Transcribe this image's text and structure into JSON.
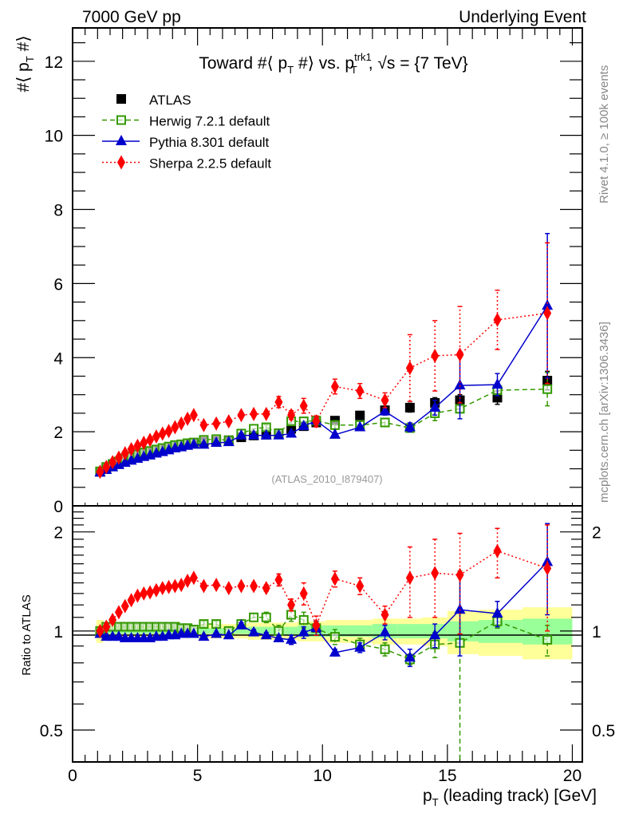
{
  "header": {
    "left_label": "7000 GeV pp",
    "right_label": "Underlying Event",
    "side_label_top": "Rivet 4.1.0, ≥ 100k events",
    "side_label_bottom": "mcplots.cern.ch [arXiv:1306.3436]",
    "watermark": "(ATLAS_2010_I879407)"
  },
  "chart_data": [
    {
      "type": "scatter",
      "panel": "main",
      "title": "Toward #⟨ p_T #⟩ vs. p_T^trk1, √s = {7 TeV}",
      "title_parts": {
        "a": "Toward #⟨ p",
        "a_sub": "T",
        "b": " #⟩ vs. p",
        "b_sup": "trk1",
        "b_sub": "T",
        "c": ", √s = {7 TeV}"
      },
      "xlabel": "p_T (leading track) [GeV]",
      "xlabel_parts": {
        "a": "p",
        "sub": "T",
        "b": " (leading track) [GeV]"
      },
      "ylabel": "#⟨ p_T #⟩",
      "ylabel_parts": {
        "a": "#⟨ p",
        "sub": "T",
        "b": " #⟩"
      },
      "xlim": [
        0,
        20.4
      ],
      "ylim": [
        0,
        12.9
      ],
      "xticks": [
        0,
        5,
        10,
        15,
        20
      ],
      "yticks": [
        0,
        2,
        4,
        6,
        8,
        10,
        12
      ],
      "legend_position": "top-left",
      "x": [
        1.1,
        1.35,
        1.6,
        1.85,
        2.1,
        2.35,
        2.6,
        2.85,
        3.1,
        3.35,
        3.6,
        3.85,
        4.1,
        4.35,
        4.6,
        4.85,
        5.25,
        5.75,
        6.25,
        6.75,
        7.25,
        7.75,
        8.25,
        8.75,
        9.25,
        9.75,
        10.5,
        11.5,
        12.5,
        13.5,
        14.5,
        15.5,
        17.0,
        19.0
      ],
      "series": [
        {
          "name": "ATLAS",
          "color": "#000000",
          "marker": "square-filled",
          "line": "none",
          "values": [
            0.92,
            1.02,
            1.1,
            1.17,
            1.24,
            1.3,
            1.35,
            1.4,
            1.44,
            1.48,
            1.52,
            1.56,
            1.6,
            1.63,
            1.66,
            1.69,
            1.73,
            1.75,
            1.77,
            1.85,
            1.9,
            1.92,
            1.96,
            2.08,
            2.15,
            2.25,
            2.3,
            2.44,
            2.58,
            2.65,
            2.78,
            2.85,
            2.92,
            3.38
          ],
          "errors": [
            0.02,
            0.02,
            0.02,
            0.02,
            0.02,
            0.02,
            0.02,
            0.02,
            0.02,
            0.02,
            0.02,
            0.02,
            0.02,
            0.02,
            0.02,
            0.02,
            0.03,
            0.03,
            0.03,
            0.03,
            0.04,
            0.04,
            0.05,
            0.05,
            0.06,
            0.06,
            0.08,
            0.09,
            0.1,
            0.12,
            0.14,
            0.15,
            0.18,
            0.25
          ]
        },
        {
          "name": "Herwig 7.2.1 default",
          "color": "#339900",
          "marker": "square-open",
          "line": "dashed",
          "values": [
            0.93,
            1.05,
            1.13,
            1.2,
            1.28,
            1.34,
            1.39,
            1.44,
            1.48,
            1.52,
            1.56,
            1.6,
            1.64,
            1.66,
            1.69,
            1.71,
            1.78,
            1.8,
            1.77,
            1.95,
            2.08,
            2.12,
            1.96,
            2.28,
            2.28,
            2.3,
            2.18,
            2.18,
            2.25,
            2.1,
            2.5,
            2.62,
            3.12,
            3.15
          ],
          "errors": [
            0.02,
            0.02,
            0.02,
            0.02,
            0.02,
            0.02,
            0.02,
            0.02,
            0.02,
            0.02,
            0.02,
            0.02,
            0.02,
            0.02,
            0.02,
            0.02,
            0.03,
            0.04,
            0.04,
            0.05,
            0.06,
            0.07,
            0.08,
            0.1,
            0.1,
            0.12,
            0.12,
            0.1,
            0.1,
            0.1,
            0.2,
            0.1,
            0.1,
            0.45
          ]
        },
        {
          "name": "Pythia 8.301 default",
          "color": "#0000cc",
          "marker": "triangle-filled",
          "line": "solid",
          "values": [
            0.9,
            0.97,
            1.04,
            1.1,
            1.16,
            1.22,
            1.27,
            1.32,
            1.36,
            1.41,
            1.45,
            1.5,
            1.55,
            1.58,
            1.62,
            1.65,
            1.65,
            1.7,
            1.72,
            1.9,
            1.9,
            1.9,
            1.9,
            1.95,
            2.15,
            2.3,
            1.92,
            2.12,
            2.55,
            2.12,
            2.65,
            3.25,
            3.27,
            5.4
          ],
          "errors": [
            0.01,
            0.01,
            0.01,
            0.01,
            0.01,
            0.01,
            0.01,
            0.01,
            0.01,
            0.01,
            0.01,
            0.01,
            0.01,
            0.01,
            0.01,
            0.01,
            0.02,
            0.02,
            0.02,
            0.03,
            0.04,
            0.04,
            0.05,
            0.06,
            0.08,
            0.08,
            0.05,
            0.06,
            0.1,
            0.12,
            0.2,
            0.9,
            0.3,
            1.95
          ]
        },
        {
          "name": "Sherpa 2.2.5 default",
          "color": "#ff0000",
          "marker": "diamond-filled",
          "line": "dotted",
          "values": [
            0.92,
            1.05,
            1.18,
            1.3,
            1.42,
            1.53,
            1.62,
            1.7,
            1.78,
            1.87,
            1.95,
            2.02,
            2.12,
            2.22,
            2.35,
            2.45,
            2.18,
            2.22,
            2.28,
            2.45,
            2.48,
            2.48,
            2.8,
            2.45,
            2.7,
            2.28,
            3.22,
            3.1,
            2.85,
            3.72,
            4.05,
            4.08,
            5.02,
            5.2
          ],
          "errors": [
            0.02,
            0.02,
            0.02,
            0.02,
            0.02,
            0.02,
            0.02,
            0.02,
            0.02,
            0.02,
            0.02,
            0.02,
            0.02,
            0.02,
            0.02,
            0.02,
            0.03,
            0.03,
            0.04,
            0.05,
            0.06,
            0.06,
            0.15,
            0.12,
            0.2,
            0.15,
            0.2,
            0.2,
            0.2,
            0.9,
            0.95,
            1.3,
            0.8,
            1.9
          ]
        }
      ]
    },
    {
      "type": "scatter",
      "panel": "ratio",
      "ylabel": "Ratio to ATLAS",
      "yscale": "log",
      "ylim": [
        0.4,
        2.4
      ],
      "yticks": [
        0.5,
        1,
        2
      ],
      "yticklabels": [
        "0.5",
        "1",
        "2"
      ],
      "xlim": [
        0,
        20.4
      ],
      "xticks": [
        0,
        5,
        10,
        15,
        20
      ],
      "reference_band": {
        "inner_color": "#99ff99",
        "outer_color": "#ffff99",
        "inner_rel": [
          0.03,
          0.02,
          0.02,
          0.02,
          0.02,
          0.02,
          0.02,
          0.02,
          0.02,
          0.02,
          0.02,
          0.02,
          0.02,
          0.02,
          0.02,
          0.02,
          0.02,
          0.02,
          0.02,
          0.02,
          0.03,
          0.03,
          0.03,
          0.03,
          0.04,
          0.04,
          0.04,
          0.04,
          0.05,
          0.05,
          0.05,
          0.07,
          0.08,
          0.09
        ],
        "outer_rel": [
          0.08,
          0.04,
          0.04,
          0.04,
          0.04,
          0.04,
          0.04,
          0.04,
          0.04,
          0.04,
          0.04,
          0.04,
          0.04,
          0.04,
          0.04,
          0.04,
          0.05,
          0.05,
          0.05,
          0.05,
          0.06,
          0.06,
          0.06,
          0.06,
          0.07,
          0.07,
          0.08,
          0.08,
          0.09,
          0.09,
          0.1,
          0.15,
          0.16,
          0.18
        ]
      },
      "series": [
        {
          "name": "Herwig 7.2.1 default",
          "values": [
            1.0,
            1.03,
            1.03,
            1.03,
            1.03,
            1.03,
            1.03,
            1.03,
            1.03,
            1.03,
            1.03,
            1.03,
            1.03,
            1.02,
            1.02,
            1.01,
            1.05,
            1.05,
            1.0,
            1.05,
            1.1,
            1.1,
            1.0,
            1.12,
            1.08,
            1.02,
            0.96,
            0.91,
            0.88,
            0.82,
            0.91,
            0.92,
            1.07,
            0.94
          ],
          "errors": [
            0.02,
            0.02,
            0.02,
            0.02,
            0.02,
            0.02,
            0.02,
            0.02,
            0.02,
            0.02,
            0.02,
            0.02,
            0.02,
            0.02,
            0.02,
            0.02,
            0.02,
            0.02,
            0.02,
            0.03,
            0.03,
            0.04,
            0.04,
            0.05,
            0.06,
            0.05,
            0.05,
            0.04,
            0.04,
            0.03,
            0.08,
            0.6,
            0.05,
            0.1
          ]
        },
        {
          "name": "Pythia 8.301 default",
          "values": [
            0.98,
            0.96,
            0.96,
            0.96,
            0.95,
            0.95,
            0.95,
            0.95,
            0.95,
            0.96,
            0.96,
            0.97,
            0.97,
            0.98,
            0.98,
            0.98,
            0.96,
            0.98,
            0.97,
            1.04,
            0.99,
            0.97,
            0.95,
            0.94,
            0.99,
            1.02,
            0.86,
            0.89,
            0.99,
            0.83,
            0.97,
            1.16,
            1.13,
            1.62
          ],
          "errors": [
            0.01,
            0.01,
            0.01,
            0.01,
            0.01,
            0.01,
            0.01,
            0.01,
            0.01,
            0.01,
            0.01,
            0.01,
            0.01,
            0.01,
            0.01,
            0.01,
            0.01,
            0.01,
            0.01,
            0.02,
            0.02,
            0.02,
            0.02,
            0.03,
            0.04,
            0.05,
            0.02,
            0.03,
            0.05,
            0.05,
            0.08,
            0.32,
            0.1,
            0.5
          ]
        },
        {
          "name": "Sherpa 2.2.5 default",
          "values": [
            1.0,
            1.03,
            1.08,
            1.14,
            1.19,
            1.24,
            1.28,
            1.3,
            1.31,
            1.33,
            1.35,
            1.36,
            1.37,
            1.38,
            1.42,
            1.45,
            1.37,
            1.38,
            1.35,
            1.37,
            1.37,
            1.35,
            1.43,
            1.2,
            1.3,
            1.04,
            1.44,
            1.37,
            1.12,
            1.45,
            1.5,
            1.48,
            1.75,
            1.55
          ],
          "errors": [
            0.02,
            0.02,
            0.02,
            0.02,
            0.02,
            0.02,
            0.02,
            0.02,
            0.02,
            0.02,
            0.02,
            0.02,
            0.02,
            0.02,
            0.02,
            0.02,
            0.02,
            0.02,
            0.02,
            0.02,
            0.03,
            0.03,
            0.06,
            0.05,
            0.1,
            0.07,
            0.08,
            0.08,
            0.07,
            0.35,
            0.4,
            0.5,
            0.3,
            0.55
          ]
        }
      ]
    }
  ]
}
